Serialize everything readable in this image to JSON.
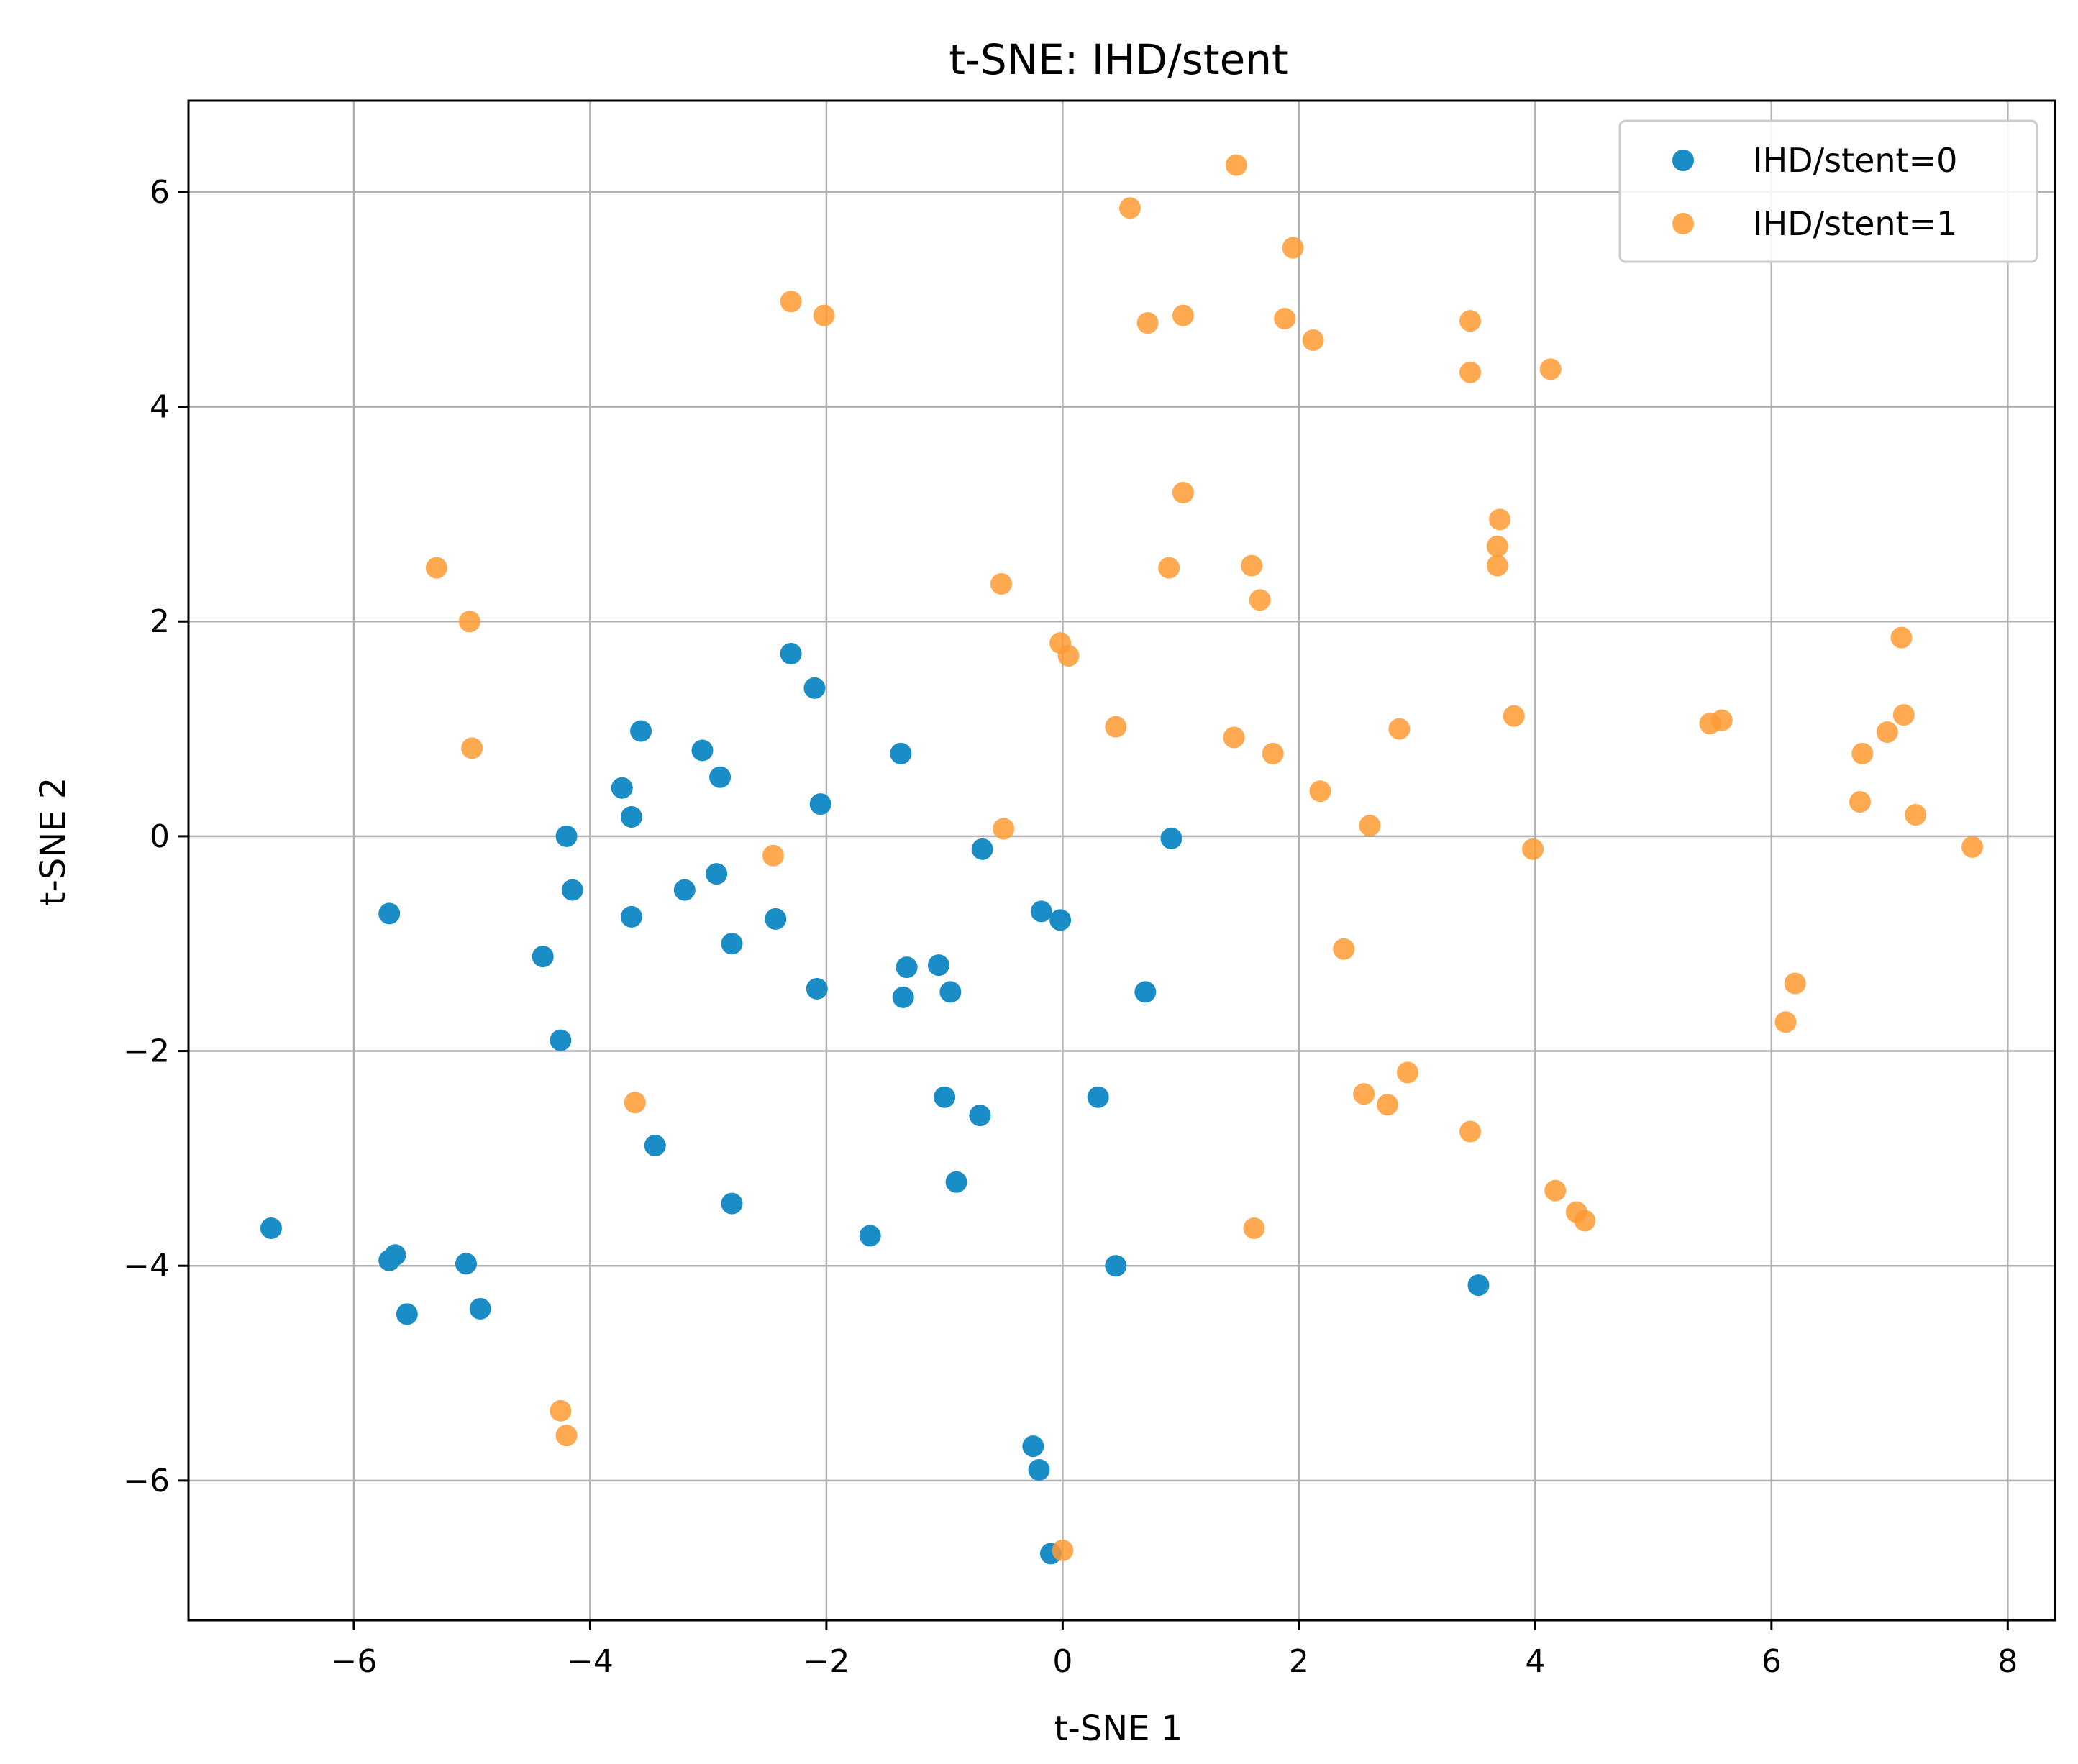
{
  "chart_data": {
    "type": "scatter",
    "title": "t-SNE: IHD/stent",
    "xlabel": "t-SNE 1",
    "ylabel": "t-SNE 2",
    "xlim": [
      -7.4,
      8.4
    ],
    "ylim": [
      -7.3,
      6.85
    ],
    "xticks": [
      -6,
      -4,
      -2,
      0,
      2,
      4,
      6,
      8
    ],
    "yticks": [
      -6,
      -4,
      -2,
      0,
      2,
      4,
      6
    ],
    "xtick_labels": [
      "−6",
      "−4",
      "−2",
      "0",
      "2",
      "4",
      "6",
      "8"
    ],
    "ytick_labels": [
      "−6",
      "−4",
      "−2",
      "0",
      "2",
      "4",
      "6"
    ],
    "grid": true,
    "legend_position": "top-right",
    "series": [
      {
        "name": "IHD/stent=0",
        "color": "#1a8cc6",
        "points": [
          [
            -6.7,
            -3.65
          ],
          [
            -5.7,
            -0.72
          ],
          [
            -5.7,
            -3.95
          ],
          [
            -5.65,
            -3.9
          ],
          [
            -5.55,
            -4.45
          ],
          [
            -5.05,
            -3.98
          ],
          [
            -4.93,
            -4.4
          ],
          [
            -4.4,
            -1.12
          ],
          [
            -4.25,
            -1.9
          ],
          [
            -4.2,
            0.0
          ],
          [
            -4.15,
            -0.5
          ],
          [
            -3.73,
            0.45
          ],
          [
            -3.65,
            0.18
          ],
          [
            -3.65,
            -0.75
          ],
          [
            -3.57,
            0.98
          ],
          [
            -3.45,
            -2.88
          ],
          [
            -3.2,
            -0.5
          ],
          [
            -3.05,
            0.8
          ],
          [
            -2.93,
            -0.35
          ],
          [
            -2.9,
            0.55
          ],
          [
            -2.8,
            -1.0
          ],
          [
            -2.8,
            -3.42
          ],
          [
            -2.43,
            -0.77
          ],
          [
            -2.3,
            1.7
          ],
          [
            -2.1,
            1.38
          ],
          [
            -2.08,
            -1.42
          ],
          [
            -2.05,
            0.3
          ],
          [
            -1.63,
            -3.72
          ],
          [
            -1.37,
            0.77
          ],
          [
            -1.35,
            -1.5
          ],
          [
            -1.32,
            -1.22
          ],
          [
            -1.05,
            -1.2
          ],
          [
            -1.0,
            -2.43
          ],
          [
            -0.95,
            -1.45
          ],
          [
            -0.9,
            -3.22
          ],
          [
            -0.7,
            -2.6
          ],
          [
            -0.68,
            -0.12
          ],
          [
            -0.25,
            -5.68
          ],
          [
            -0.2,
            -5.9
          ],
          [
            -0.18,
            -0.7
          ],
          [
            -0.1,
            -6.68
          ],
          [
            -0.02,
            -0.78
          ],
          [
            0.3,
            -2.43
          ],
          [
            0.7,
            -1.45
          ],
          [
            0.45,
            -4.0
          ],
          [
            0.92,
            -0.02
          ],
          [
            3.52,
            -4.18
          ]
        ]
      },
      {
        "name": "IHD/stent=1",
        "color": "#ff9a33",
        "points": [
          [
            -5.3,
            2.5
          ],
          [
            -5.02,
            2.0
          ],
          [
            -5.0,
            0.82
          ],
          [
            -4.25,
            -5.35
          ],
          [
            -4.2,
            -5.58
          ],
          [
            -3.62,
            -2.48
          ],
          [
            -2.45,
            -0.18
          ],
          [
            -2.3,
            4.98
          ],
          [
            -2.02,
            4.85
          ],
          [
            -0.52,
            2.35
          ],
          [
            -0.5,
            0.07
          ],
          [
            -0.02,
            1.8
          ],
          [
            0.05,
            1.68
          ],
          [
            0.0,
            -6.65
          ],
          [
            0.45,
            1.02
          ],
          [
            0.57,
            5.85
          ],
          [
            0.72,
            4.78
          ],
          [
            0.9,
            2.5
          ],
          [
            1.02,
            4.85
          ],
          [
            1.02,
            3.2
          ],
          [
            1.45,
            0.92
          ],
          [
            1.47,
            6.25
          ],
          [
            1.6,
            2.52
          ],
          [
            1.67,
            2.2
          ],
          [
            1.62,
            -3.65
          ],
          [
            1.78,
            0.77
          ],
          [
            1.88,
            4.82
          ],
          [
            1.95,
            5.48
          ],
          [
            2.12,
            4.62
          ],
          [
            2.18,
            0.42
          ],
          [
            2.38,
            -1.05
          ],
          [
            2.55,
            -2.4
          ],
          [
            2.6,
            0.1
          ],
          [
            2.75,
            -2.5
          ],
          [
            2.85,
            1.0
          ],
          [
            2.92,
            -2.2
          ],
          [
            3.45,
            4.8
          ],
          [
            3.45,
            4.32
          ],
          [
            3.45,
            -2.75
          ],
          [
            3.68,
            2.7
          ],
          [
            3.68,
            2.52
          ],
          [
            3.7,
            2.95
          ],
          [
            3.82,
            1.12
          ],
          [
            3.98,
            -0.12
          ],
          [
            4.13,
            4.35
          ],
          [
            4.17,
            -3.3
          ],
          [
            4.35,
            -3.5
          ],
          [
            4.42,
            -3.58
          ],
          [
            5.48,
            1.05
          ],
          [
            5.58,
            1.08
          ],
          [
            6.12,
            -1.73
          ],
          [
            6.2,
            -1.37
          ],
          [
            6.75,
            0.32
          ],
          [
            6.77,
            0.77
          ],
          [
            6.98,
            0.97
          ],
          [
            7.1,
            1.85
          ],
          [
            7.12,
            1.13
          ],
          [
            7.22,
            0.2
          ],
          [
            7.7,
            -0.1
          ]
        ]
      }
    ]
  }
}
